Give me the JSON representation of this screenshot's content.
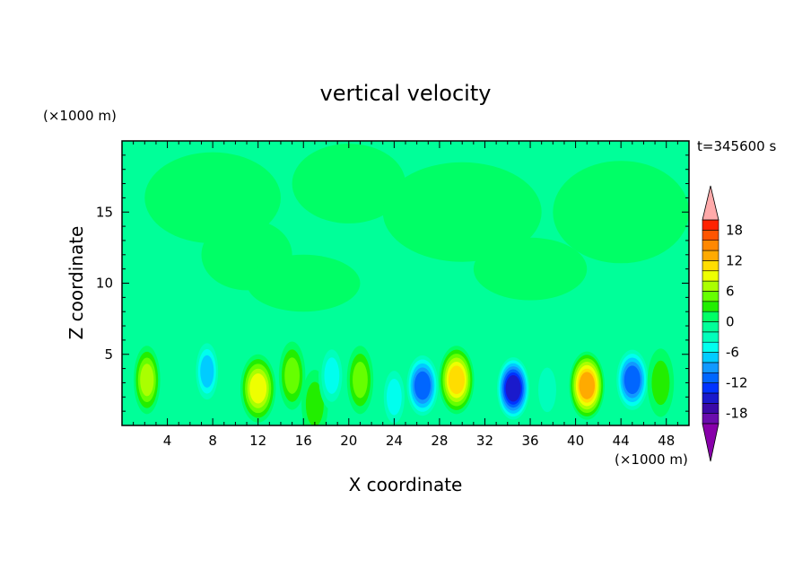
{
  "chart_data": {
    "type": "heatmap",
    "title": "vertical velocity",
    "xlabel": "X coordinate",
    "ylabel": "Z coordinate",
    "x_unit": "(×1000 m)",
    "y_unit": "(×1000 m)",
    "time_label": "t=345600 s",
    "xlim": [
      0,
      50
    ],
    "ylim": [
      0,
      20
    ],
    "x_ticks": [
      4,
      8,
      12,
      16,
      20,
      24,
      28,
      32,
      36,
      40,
      44,
      48
    ],
    "y_ticks": [
      5,
      10,
      15
    ],
    "colorbar": {
      "range": [
        -20,
        20
      ],
      "ticks": [
        18,
        12,
        6,
        0,
        -6,
        -12,
        -18
      ],
      "levels": [
        -20,
        -18,
        -16,
        -14,
        -12,
        -10,
        -8,
        -6,
        -4,
        -2,
        0,
        2,
        4,
        6,
        8,
        10,
        12,
        14,
        16,
        18,
        20
      ],
      "colors": [
        "#6a0dad",
        "#3b0aa8",
        "#1a1acc",
        "#0033ff",
        "#0066ff",
        "#1199ff",
        "#00ccff",
        "#00ffee",
        "#00ffbb",
        "#00ff99",
        "#00ff66",
        "#22ee00",
        "#66ff00",
        "#aaff00",
        "#eeff00",
        "#ffdd00",
        "#ffaa00",
        "#ff8800",
        "#ff5500",
        "#ff2200"
      ],
      "under_color": "#8800aa",
      "over_color": "#ffaaaa"
    },
    "features": [
      {
        "x": 2.2,
        "z": 3.2,
        "value": 7
      },
      {
        "x": 7.5,
        "z": 3.8,
        "value": -8
      },
      {
        "x": 12.0,
        "z": 2.6,
        "value": 9
      },
      {
        "x": 15.0,
        "z": 3.5,
        "value": 5
      },
      {
        "x": 17.0,
        "z": 1.5,
        "value": 3
      },
      {
        "x": 18.5,
        "z": 3.5,
        "value": -5
      },
      {
        "x": 21.0,
        "z": 3.2,
        "value": 5
      },
      {
        "x": 24.0,
        "z": 2.0,
        "value": -6
      },
      {
        "x": 26.5,
        "z": 2.8,
        "value": -12
      },
      {
        "x": 29.5,
        "z": 3.2,
        "value": 12
      },
      {
        "x": 34.5,
        "z": 2.6,
        "value": -15
      },
      {
        "x": 37.5,
        "z": 2.5,
        "value": -4
      },
      {
        "x": 41.0,
        "z": 2.8,
        "value": 13
      },
      {
        "x": 45.0,
        "z": 3.2,
        "value": -12
      },
      {
        "x": 47.5,
        "z": 3.0,
        "value": 4
      }
    ]
  }
}
